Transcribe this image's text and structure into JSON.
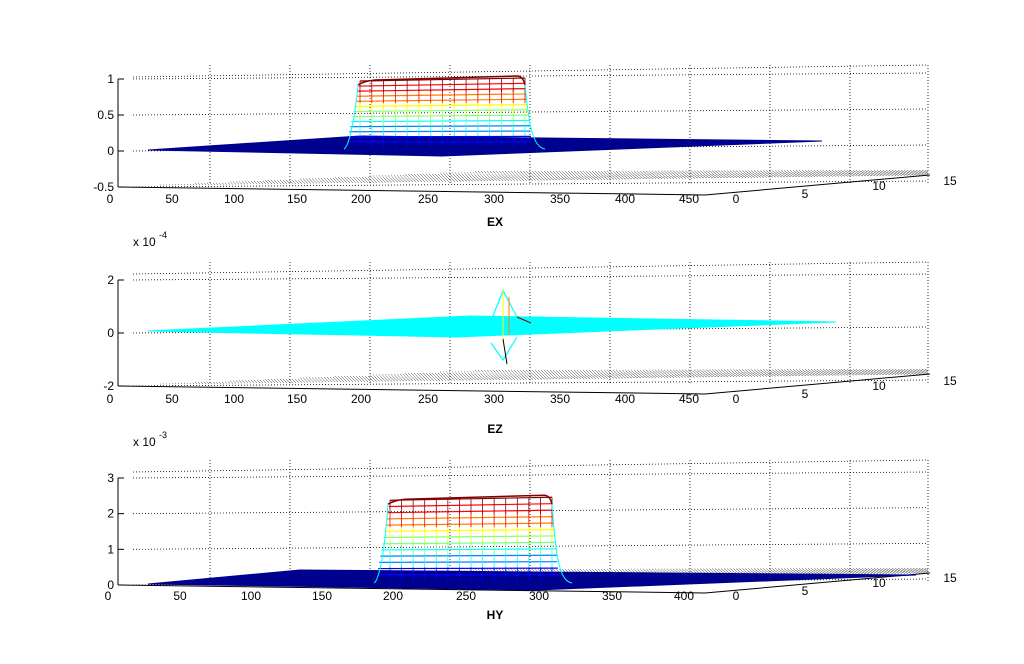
{
  "chart_data": [
    {
      "type": "surface",
      "title": "EX",
      "exponent_base": "",
      "exponent_power": "",
      "z_ticks": [
        "1",
        "0.5",
        "0",
        "-0.5"
      ],
      "z_values": [
        1,
        0.5,
        0,
        -0.5
      ],
      "x_ticks": [
        "0",
        "50",
        "100",
        "150",
        "200",
        "250",
        "300",
        "350",
        "400",
        "450"
      ],
      "y_ticks": [
        "0",
        "5",
        "10",
        "15"
      ],
      "zlim": [
        -0.5,
        1
      ],
      "grid": true,
      "colormap": "jet",
      "pulse": {
        "x_start": 200,
        "x_end": 330,
        "peak": 1.0,
        "base": 0
      }
    },
    {
      "type": "surface",
      "title": "EZ",
      "exponent_base": "x 10",
      "exponent_power": "-4",
      "z_ticks": [
        "2",
        "0",
        "-2"
      ],
      "z_values": [
        2,
        0,
        -2
      ],
      "x_ticks": [
        "0",
        "50",
        "100",
        "150",
        "200",
        "250",
        "300",
        "350",
        "400",
        "450"
      ],
      "y_ticks": [
        "0",
        "5",
        "10",
        "15"
      ],
      "zlim": [
        -2,
        2
      ],
      "grid": true,
      "colormap": "jet",
      "spike": {
        "x": 310,
        "max": 1.6,
        "min": -0.6
      }
    },
    {
      "type": "surface",
      "title": "HY",
      "exponent_base": "x 10",
      "exponent_power": "-3",
      "z_ticks": [
        "3",
        "2",
        "1",
        "0"
      ],
      "z_values": [
        3,
        2,
        1,
        0
      ],
      "x_ticks": [
        "0",
        "50",
        "100",
        "150",
        "200",
        "250",
        "300",
        "350",
        "400"
      ],
      "y_ticks": [
        "0",
        "5",
        "10",
        "15"
      ],
      "zlim": [
        0,
        3
      ],
      "grid": true,
      "colormap": "jet",
      "pulse": {
        "x_start": 200,
        "x_end": 310,
        "peak": 2.6,
        "base": 0
      }
    }
  ],
  "colors": {
    "surface_base": "#00008f",
    "ez_surface": "#00ffff",
    "jet": [
      "#00008f",
      "#0000ff",
      "#0080ff",
      "#00ffff",
      "#80ff80",
      "#ffff00",
      "#ff8000",
      "#ff0000",
      "#800000"
    ]
  }
}
